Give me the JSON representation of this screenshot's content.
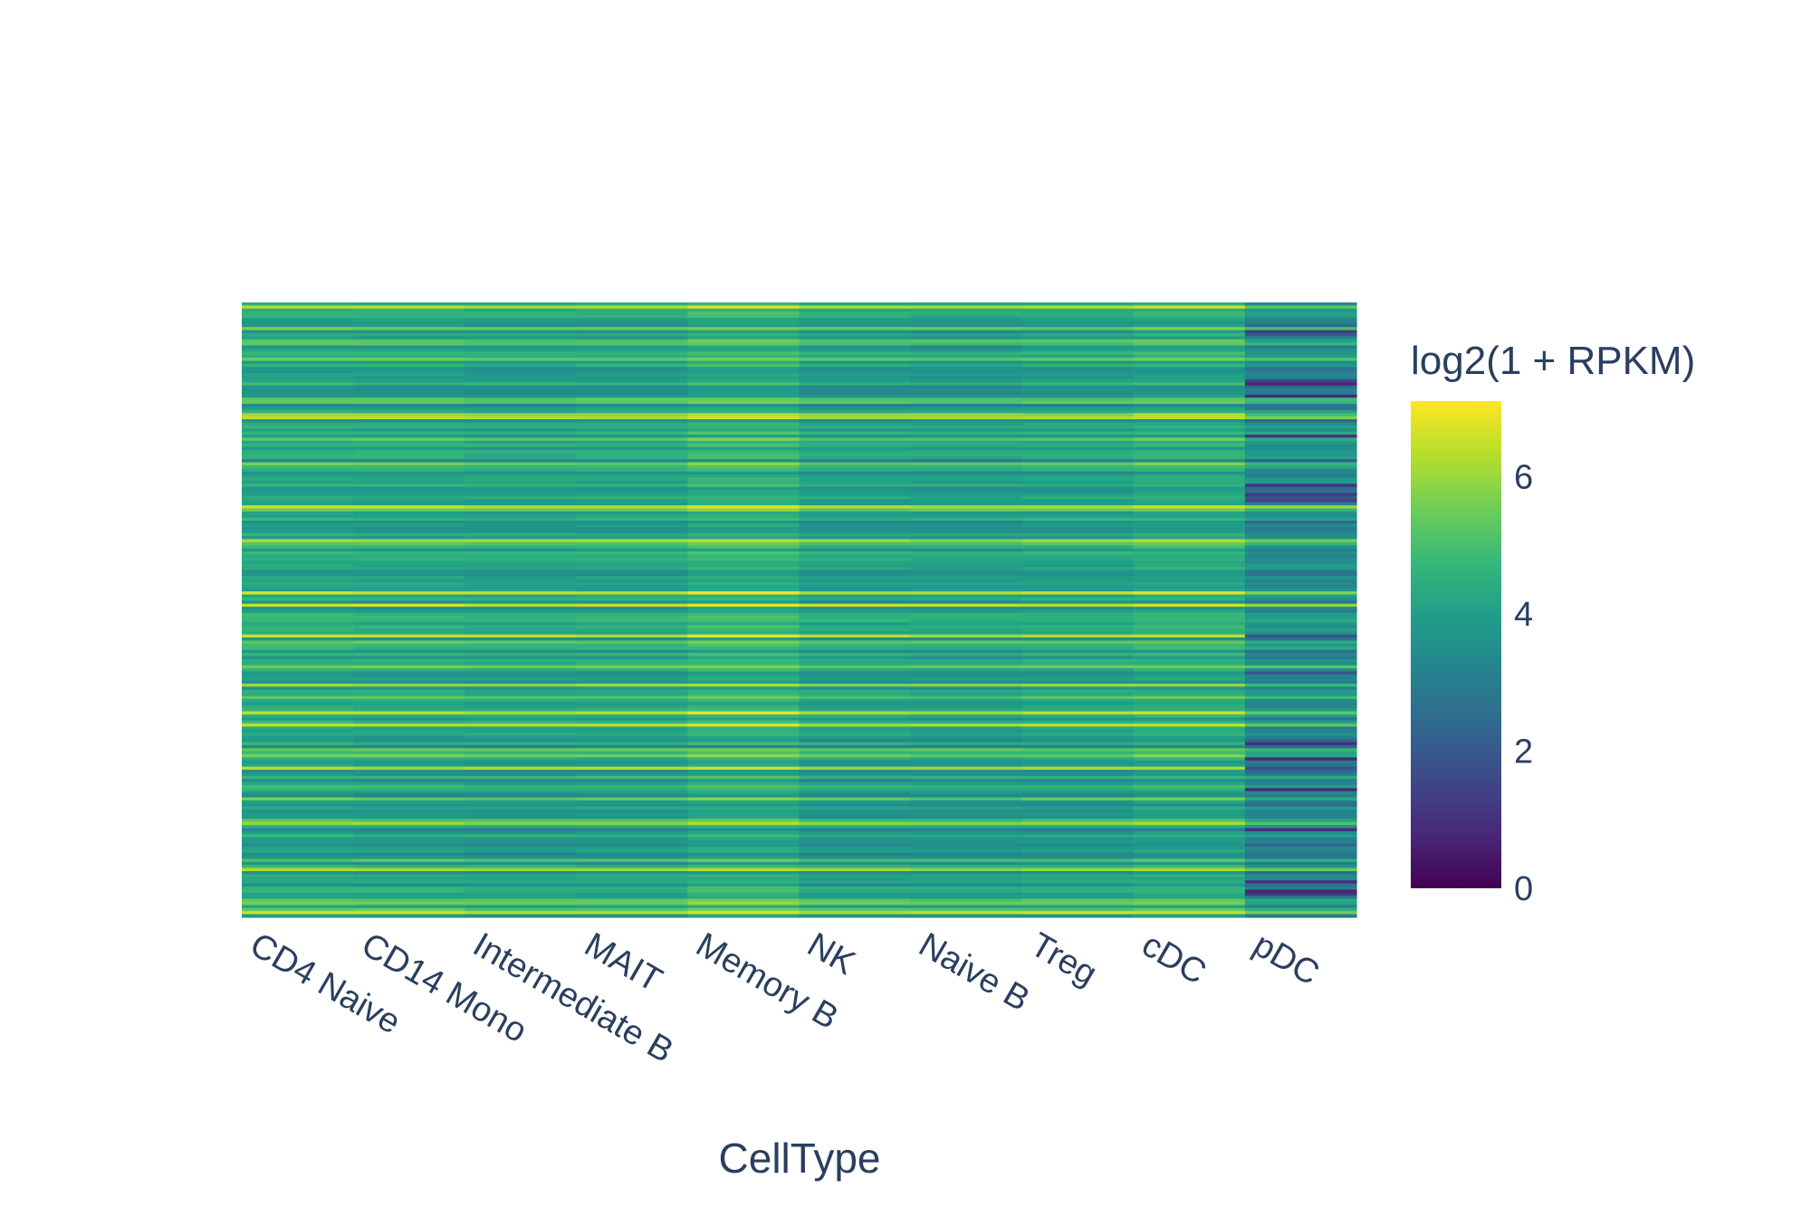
{
  "chart_data": {
    "type": "heatmap",
    "title": "",
    "xlabel": "CellType",
    "ylabel": "",
    "categories": [
      "CD4 Naive",
      "CD14 Mono",
      "Intermediate B",
      "MAIT",
      "Memory B",
      "NK",
      "Naive B",
      "Treg",
      "cDC",
      "pDC"
    ],
    "row_count": 200,
    "column_offsets": [
      0.0,
      -0.05,
      -0.15,
      -0.1,
      0.25,
      -0.2,
      -0.25,
      -0.15,
      0.05,
      -0.9
    ],
    "colorscale": "Viridis",
    "colorbar": {
      "title": "log2(1 + RPKM)",
      "range": [
        0,
        7.1
      ],
      "ticks": [
        "0",
        "2",
        "4",
        "6"
      ],
      "tick_values": [
        0,
        2,
        4,
        6
      ]
    },
    "colors": {
      "axis_text": "#2a3f5f",
      "background": "#ffffff"
    }
  }
}
